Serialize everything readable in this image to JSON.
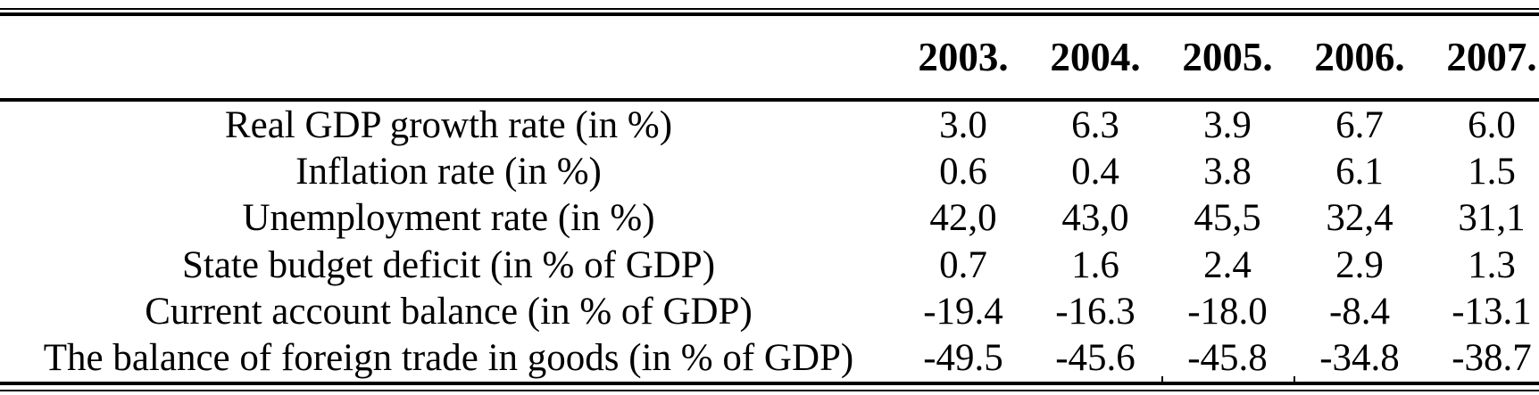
{
  "page": {
    "background_color": "#ffffff",
    "text_color": "#000000",
    "rule_color": "#000000"
  },
  "table": {
    "header": {
      "empty_label": "",
      "years": [
        "2003.",
        "2004.",
        "2005.",
        "2006.",
        "2007."
      ]
    },
    "rows": [
      {
        "label": "Real GDP growth rate (in %)",
        "values": [
          "3.0",
          "6.3",
          "3.9",
          "6.7",
          "6.0"
        ]
      },
      {
        "label": "Inflation rate (in %)",
        "values": [
          "0.6",
          "0.4",
          "3.8",
          "6.1",
          "1.5"
        ]
      },
      {
        "label": "Unemployment rate (in %)",
        "values": [
          "42,0",
          "43,0",
          "45,5",
          "32,4",
          "31,1"
        ]
      },
      {
        "label": "State budget deficit (in % of GDP)",
        "values": [
          "0.7",
          "1.6",
          "2.4",
          "2.9",
          "1.3"
        ]
      },
      {
        "label": "Current account balance (in % of GDP)",
        "values": [
          "-19.4",
          "-16.3",
          "-18.0",
          "-8.4",
          "-13.1"
        ]
      },
      {
        "label": "The balance of foreign trade in goods (in % of GDP)",
        "values": [
          "-49.5",
          "-45.6",
          "-45.8",
          "-34.8",
          "-38.7"
        ]
      }
    ]
  },
  "chart_data": {
    "type": "table",
    "columns": [
      "",
      "2003.",
      "2004.",
      "2005.",
      "2006.",
      "2007."
    ],
    "rows": [
      [
        "Real GDP growth rate (in %)",
        "3.0",
        "6.3",
        "3.9",
        "6.7",
        "6.0"
      ],
      [
        "Inflation rate (in %)",
        "0.6",
        "0.4",
        "3.8",
        "6.1",
        "1.5"
      ],
      [
        "Unemployment rate (in %)",
        "42,0",
        "43,0",
        "45,5",
        "32,4",
        "31,1"
      ],
      [
        "State budget deficit (in % of GDP)",
        "0.7",
        "1.6",
        "2.4",
        "2.9",
        "1.3"
      ],
      [
        "Current account balance (in % of GDP)",
        "-19.4",
        "-16.3",
        "-18.0",
        "-8.4",
        "-13.1"
      ],
      [
        "The balance of foreign trade in goods (in % of GDP)",
        "-49.5",
        "-45.6",
        "-45.8",
        "-34.8",
        "-38.7"
      ]
    ]
  }
}
